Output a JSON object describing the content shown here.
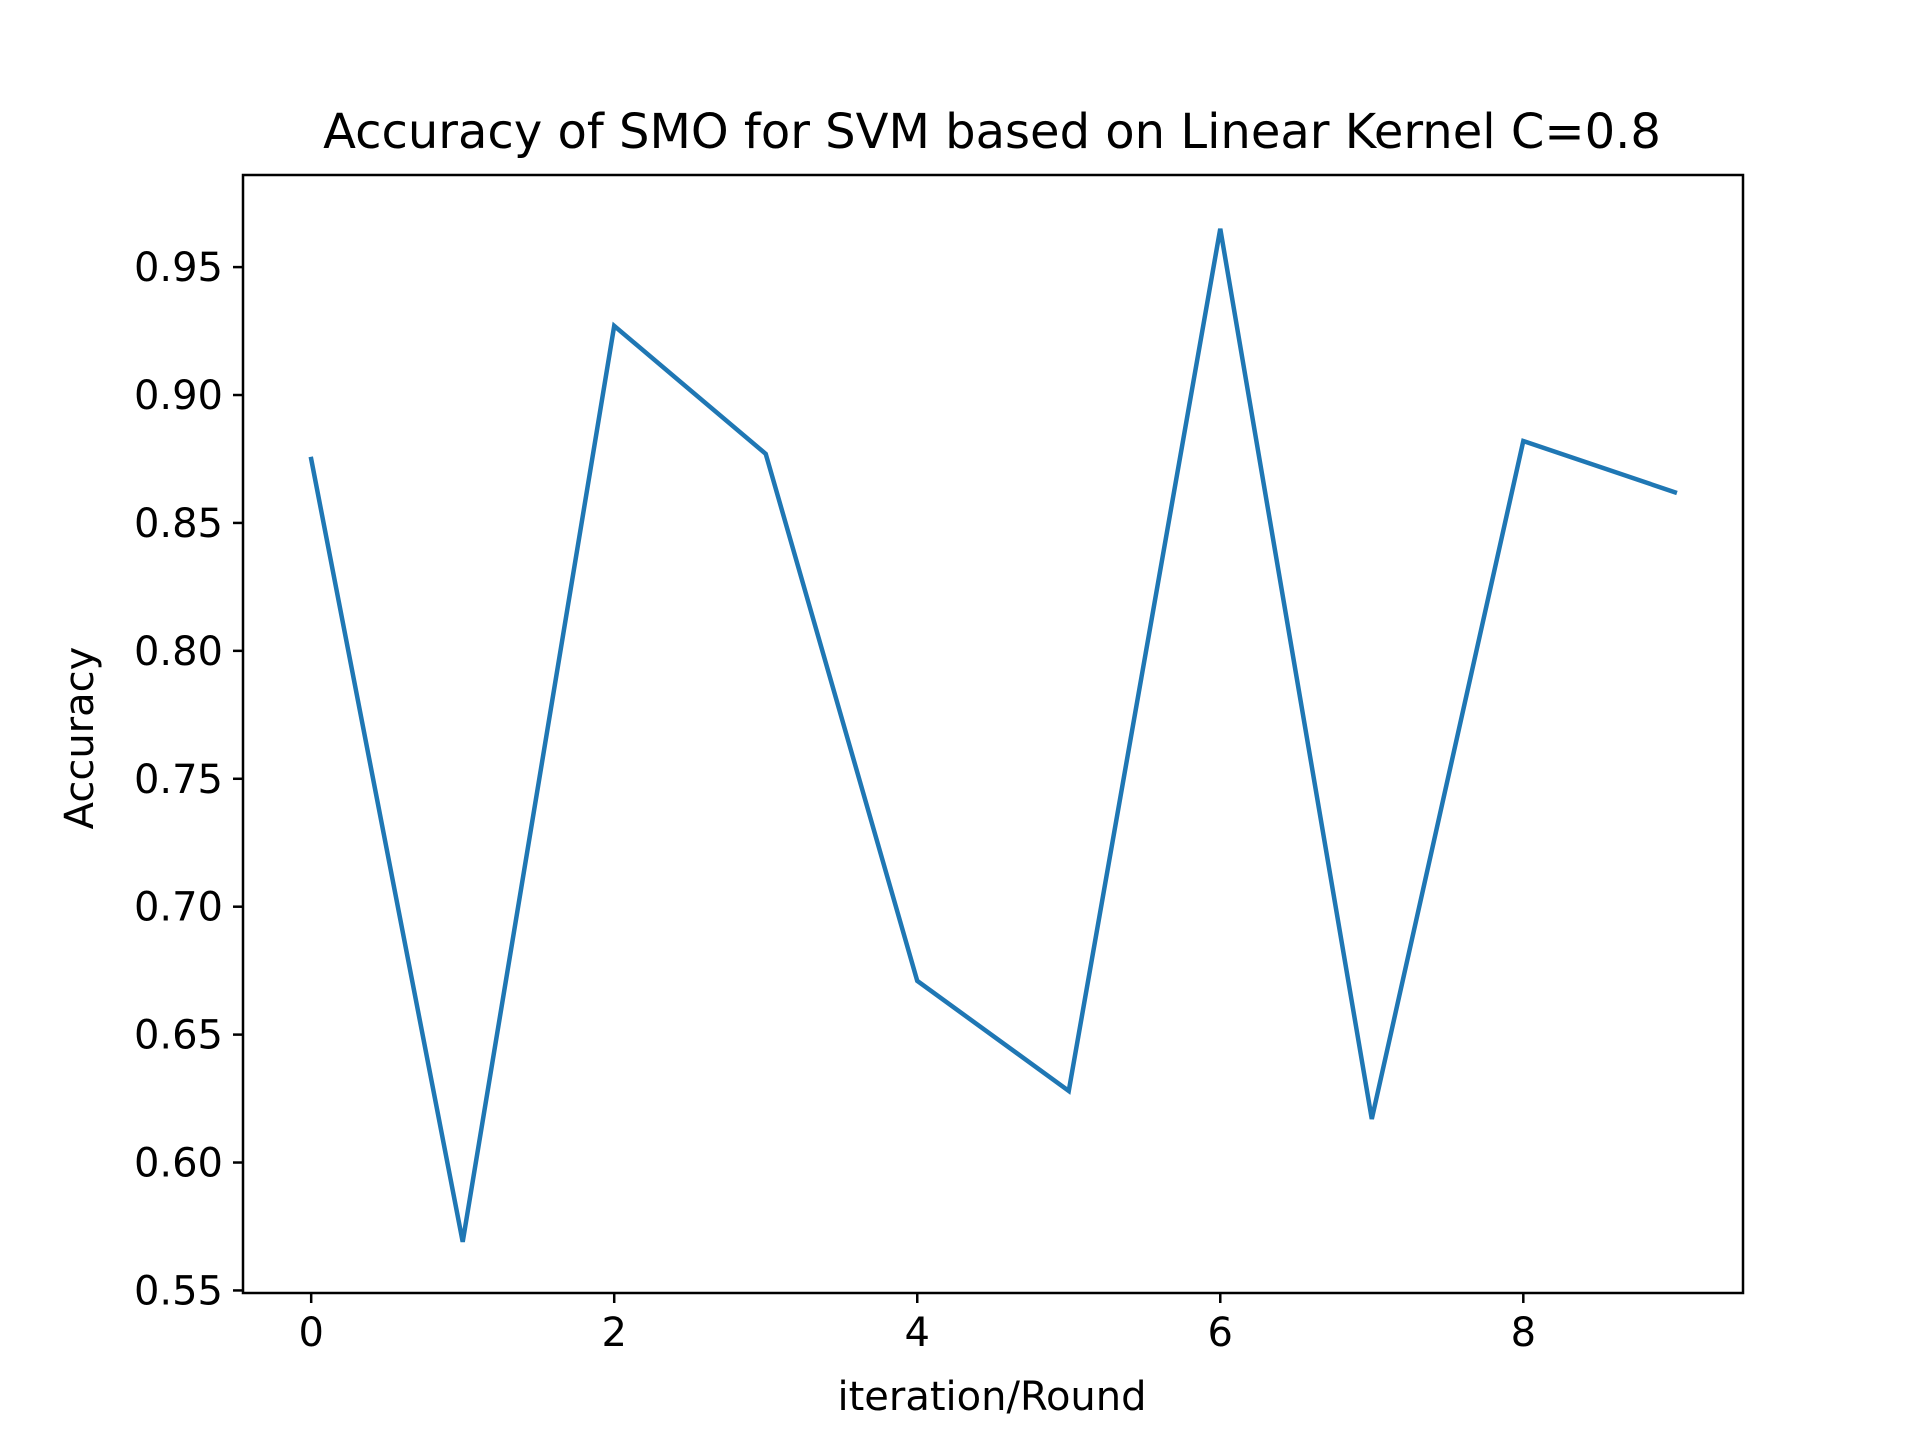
{
  "chart_data": {
    "type": "line",
    "title": "Accuracy of SMO for SVM based on Linear Kernel C=0.8",
    "xlabel": "iteration/Round",
    "ylabel": "Accuracy",
    "xlim": [
      -0.45,
      9.45
    ],
    "ylim": [
      0.549,
      0.986
    ],
    "xticks": [
      0,
      2,
      4,
      6,
      8
    ],
    "xtick_labels": [
      "0",
      "2",
      "4",
      "6",
      "8"
    ],
    "yticks": [
      0.55,
      0.6,
      0.65,
      0.7,
      0.75,
      0.8,
      0.85,
      0.9,
      0.95
    ],
    "ytick_labels": [
      "0.55",
      "0.60",
      "0.65",
      "0.70",
      "0.75",
      "0.80",
      "0.85",
      "0.90",
      "0.95"
    ],
    "grid": false,
    "legend": "none",
    "series": [
      {
        "color": "#1f77b4",
        "x": [
          0,
          1,
          2,
          3,
          4,
          5,
          6,
          7,
          8,
          9
        ],
        "values": [
          0.875,
          0.569,
          0.927,
          0.877,
          0.671,
          0.628,
          0.965,
          0.617,
          0.882,
          0.862
        ]
      }
    ]
  }
}
